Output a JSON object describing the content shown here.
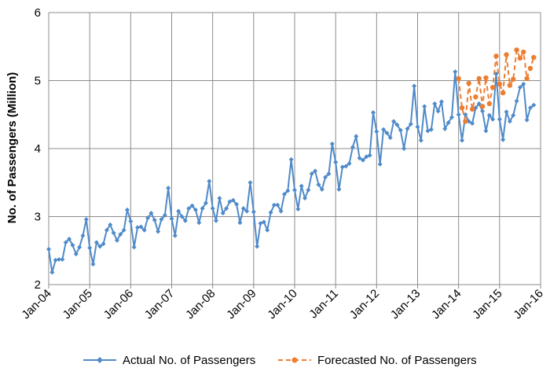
{
  "chart_data": {
    "type": "line",
    "title": "",
    "xlabel": "",
    "ylabel": "No. of Passengers (Million)",
    "ylim": [
      2,
      6
    ],
    "yticks": [
      "2",
      "3",
      "4",
      "5",
      "6"
    ],
    "xlim": [
      0,
      144
    ],
    "xticks": [
      {
        "label": "Jan-04",
        "index": 0
      },
      {
        "label": "Jan-05",
        "index": 12
      },
      {
        "label": "Jan-06",
        "index": 24
      },
      {
        "label": "Jan-07",
        "index": 36
      },
      {
        "label": "Jan-08",
        "index": 48
      },
      {
        "label": "Jan-09",
        "index": 60
      },
      {
        "label": "Jan-10",
        "index": 72
      },
      {
        "label": "Jan-11",
        "index": 84
      },
      {
        "label": "Jan-12",
        "index": 96
      },
      {
        "label": "Jan-13",
        "index": 108
      },
      {
        "label": "Jan-14",
        "index": 120
      },
      {
        "label": "Jan-15",
        "index": 132
      },
      {
        "label": "Jan-16",
        "index": 144
      }
    ],
    "grid": true,
    "legend_position": "bottom",
    "series": [
      {
        "name": "Actual No. of Passengers",
        "color": "#4f8ac9",
        "style": "solid",
        "marker": "diamond",
        "start_index": 0,
        "values": [
          2.52,
          2.18,
          2.36,
          2.37,
          2.37,
          2.62,
          2.67,
          2.58,
          2.45,
          2.55,
          2.72,
          2.96,
          2.54,
          2.3,
          2.62,
          2.56,
          2.6,
          2.8,
          2.88,
          2.76,
          2.65,
          2.74,
          2.8,
          3.1,
          2.93,
          2.55,
          2.84,
          2.85,
          2.8,
          2.98,
          3.05,
          2.95,
          2.78,
          2.96,
          3.02,
          3.42,
          2.97,
          2.72,
          3.08,
          3.0,
          2.94,
          3.12,
          3.16,
          3.1,
          2.91,
          3.12,
          3.2,
          3.52,
          3.12,
          2.94,
          3.27,
          3.05,
          3.12,
          3.22,
          3.24,
          3.18,
          2.91,
          3.12,
          3.08,
          3.5,
          3.07,
          2.56,
          2.9,
          2.92,
          2.8,
          3.06,
          3.17,
          3.17,
          3.08,
          3.33,
          3.38,
          3.84,
          3.39,
          3.11,
          3.45,
          3.27,
          3.39,
          3.63,
          3.67,
          3.47,
          3.4,
          3.58,
          3.63,
          4.07,
          3.8,
          3.4,
          3.73,
          3.74,
          3.78,
          4.02,
          4.18,
          3.86,
          3.83,
          3.88,
          3.9,
          4.53,
          4.25,
          3.77,
          4.28,
          4.23,
          4.16,
          4.4,
          4.35,
          4.27,
          4.0,
          4.29,
          4.36,
          4.92,
          4.32,
          4.12,
          4.62,
          4.26,
          4.28,
          4.66,
          4.55,
          4.69,
          4.29,
          4.38,
          4.46,
          5.13,
          4.5,
          4.12,
          4.5,
          4.4,
          4.37,
          4.6,
          4.66,
          4.55,
          4.26,
          4.49,
          4.43,
          5.1,
          4.43,
          4.13,
          4.54,
          4.4,
          4.49,
          4.7,
          4.9,
          4.95,
          4.42,
          4.6,
          4.64
        ]
      },
      {
        "name": "Forecasted No. of Passengers",
        "color": "#ed7d31",
        "style": "dashed",
        "marker": "circle",
        "start_index": 120,
        "values": [
          5.03,
          4.6,
          4.4,
          4.96,
          4.58,
          4.76,
          5.03,
          4.62,
          5.04,
          4.66,
          4.9,
          5.36,
          4.95,
          4.82,
          5.38,
          4.93,
          5.02,
          5.45,
          5.33,
          5.42,
          5.03,
          5.18,
          5.34
        ]
      }
    ]
  }
}
